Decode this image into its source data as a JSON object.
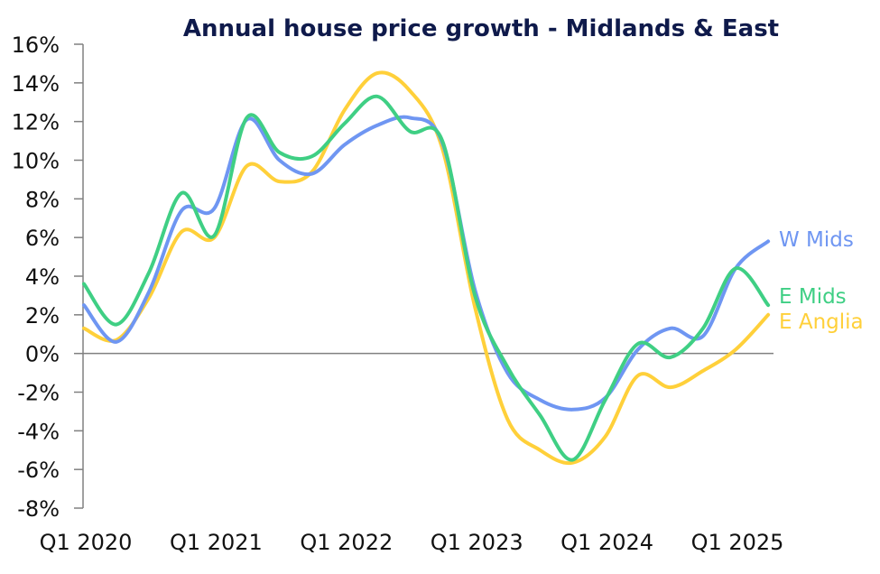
{
  "chart_data": {
    "type": "line",
    "title": "Annual house price growth - Midlands & East",
    "xlabel": "",
    "ylabel": "",
    "ylim": [
      -8,
      16
    ],
    "y_ticks": [
      16,
      14,
      12,
      10,
      8,
      6,
      4,
      2,
      0,
      -2,
      -4,
      -6,
      -8
    ],
    "y_tick_labels": [
      "16%",
      "14%",
      "12%",
      "10%",
      "8%",
      "6%",
      "4%",
      "2%",
      "0%",
      "-2%",
      "-4%",
      "-6%",
      "-8%"
    ],
    "x": [
      "Q1 2020",
      "Q2 2020",
      "Q3 2020",
      "Q4 2020",
      "Q1 2021",
      "Q2 2021",
      "Q3 2021",
      "Q4 2021",
      "Q1 2022",
      "Q2 2022",
      "Q3 2022",
      "Q4 2022",
      "Q1 2023",
      "Q2 2023",
      "Q3 2023",
      "Q4 2023",
      "Q1 2024",
      "Q2 2024",
      "Q3 2024",
      "Q4 2024",
      "Q1 2025",
      "Q2 2025"
    ],
    "x_tick_labels": [
      "Q1 2020",
      "Q1 2021",
      "Q1 2022",
      "Q1 2023",
      "Q1 2024",
      "Q1 2025"
    ],
    "x_tick_indices": [
      0,
      4,
      8,
      12,
      16,
      20
    ],
    "grid": false,
    "zero_line": true,
    "legend": "inline-right",
    "series": [
      {
        "name": "W Mids",
        "color": "#6f96f2",
        "values": [
          2.5,
          0.6,
          3.2,
          7.4,
          7.5,
          12.1,
          10.0,
          9.3,
          10.8,
          11.8,
          12.2,
          10.9,
          3.3,
          -1.0,
          -2.4,
          -2.9,
          -2.3,
          0.2,
          1.3,
          0.9,
          4.4,
          5.8
        ]
      },
      {
        "name": "E Mids",
        "color": "#3fcf84",
        "values": [
          3.6,
          1.5,
          4.2,
          8.3,
          6.1,
          12.2,
          10.4,
          10.2,
          11.9,
          13.3,
          11.5,
          11.0,
          3.0,
          -0.7,
          -3.2,
          -5.5,
          -2.4,
          0.5,
          -0.2,
          1.3,
          4.4,
          2.5
        ]
      },
      {
        "name": "E Anglia",
        "color": "#ffd03a",
        "values": [
          1.3,
          0.7,
          2.9,
          6.3,
          6.0,
          9.7,
          8.9,
          9.4,
          12.6,
          14.5,
          13.6,
          10.6,
          2.4,
          -3.4,
          -5.0,
          -5.65,
          -4.3,
          -1.15,
          -1.75,
          -0.9,
          0.2,
          2.0
        ]
      }
    ]
  }
}
